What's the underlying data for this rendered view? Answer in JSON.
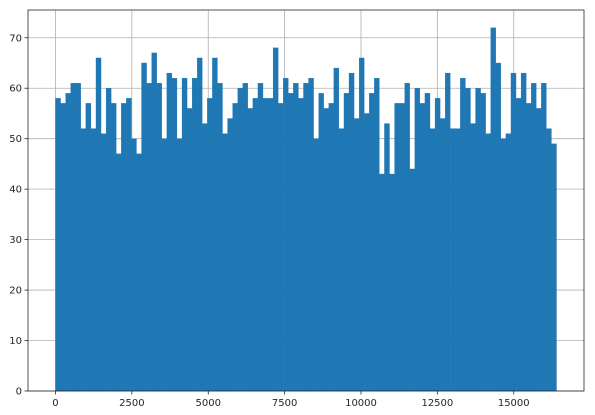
{
  "chart_data": {
    "type": "bar",
    "title": "",
    "xlabel": "",
    "ylabel": "",
    "histogram": true,
    "grid": true,
    "bar_color": "#1f77b4",
    "grid_color": "#b0b0b0",
    "x_range": [
      -900,
      17300
    ],
    "y_range": [
      0,
      75.5
    ],
    "x_ticks": [
      {
        "value": 0,
        "label": "0"
      },
      {
        "value": 2500,
        "label": "2500"
      },
      {
        "value": 5000,
        "label": "5000"
      },
      {
        "value": 7500,
        "label": "7500"
      },
      {
        "value": 10000,
        "label": "10000"
      },
      {
        "value": 12500,
        "label": "12500"
      },
      {
        "value": 15000,
        "label": "15000"
      }
    ],
    "y_ticks": [
      {
        "value": 0,
        "label": "0"
      },
      {
        "value": 10,
        "label": "10"
      },
      {
        "value": 20,
        "label": "20"
      },
      {
        "value": 30,
        "label": "30"
      },
      {
        "value": 40,
        "label": "40"
      },
      {
        "value": 50,
        "label": "50"
      },
      {
        "value": 60,
        "label": "60"
      },
      {
        "value": 70,
        "label": "70"
      }
    ],
    "bin_start": 0,
    "bin_end": 16400,
    "values": [
      58,
      57,
      59,
      61,
      61,
      52,
      57,
      52,
      66,
      51,
      60,
      57,
      47,
      57,
      58,
      50,
      47,
      65,
      61,
      67,
      61,
      50,
      63,
      62,
      50,
      62,
      56,
      62,
      66,
      53,
      58,
      66,
      61,
      51,
      54,
      57,
      60,
      61,
      56,
      58,
      61,
      58,
      58,
      68,
      57,
      62,
      59,
      61,
      58,
      61,
      62,
      50,
      59,
      56,
      57,
      64,
      52,
      59,
      63,
      54,
      66,
      55,
      59,
      62,
      43,
      53,
      43,
      57,
      57,
      61,
      44,
      60,
      57,
      59,
      52,
      58,
      54,
      63,
      52,
      52,
      62,
      60,
      53,
      60,
      59,
      51,
      72,
      65,
      50,
      51,
      63,
      58,
      63,
      57,
      61,
      56,
      61,
      52,
      49
    ]
  }
}
